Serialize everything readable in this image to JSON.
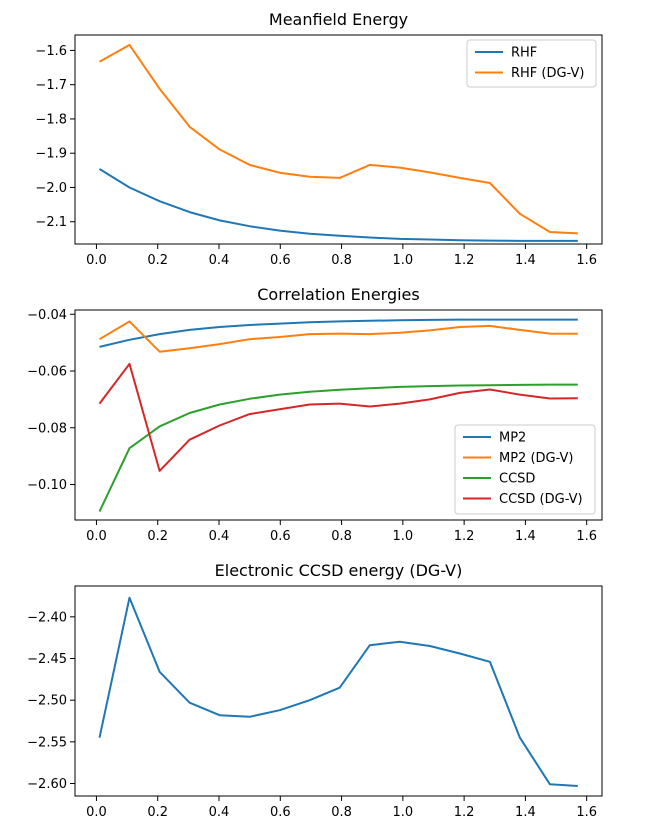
{
  "chart_data": [
    {
      "type": "line",
      "title": "Meanfield Energy",
      "xlim": [
        -0.07,
        1.65
      ],
      "ylim": [
        -2.165,
        -1.555
      ],
      "xticks": [
        "0.0",
        "0.2",
        "0.4",
        "0.6",
        "0.8",
        "1.0",
        "1.2",
        "1.4",
        "1.6"
      ],
      "yticks": [
        "-1.6",
        "-1.7",
        "-1.8",
        "-1.9",
        "-2.0",
        "-2.1"
      ],
      "legend": "top-right",
      "x": [
        0.01,
        0.108,
        0.206,
        0.304,
        0.402,
        0.5,
        0.598,
        0.696,
        0.794,
        0.892,
        0.99,
        1.088,
        1.186,
        1.284,
        1.382,
        1.48,
        1.571
      ],
      "series": [
        {
          "name": "RHF",
          "color": "#1f77b4",
          "values": [
            -1.946,
            -2.0,
            -2.04,
            -2.072,
            -2.096,
            -2.113,
            -2.126,
            -2.135,
            -2.141,
            -2.146,
            -2.15,
            -2.152,
            -2.154,
            -2.155,
            -2.156,
            -2.156,
            -2.156
          ]
        },
        {
          "name": "RHF (DG-V)",
          "color": "#ff7f0e",
          "values": [
            -1.633,
            -1.584,
            -1.712,
            -1.823,
            -1.889,
            -1.934,
            -1.957,
            -1.969,
            -1.972,
            -1.934,
            -1.942,
            -1.956,
            -1.972,
            -1.987,
            -2.077,
            -2.13,
            -2.134
          ]
        }
      ]
    },
    {
      "type": "line",
      "title": "Correlation Energies",
      "xlim": [
        -0.07,
        1.65
      ],
      "ylim": [
        -0.1125,
        -0.0385
      ],
      "xticks": [
        "0.0",
        "0.2",
        "0.4",
        "0.6",
        "0.8",
        "1.0",
        "1.2",
        "1.4",
        "1.6"
      ],
      "yticks": [
        "-0.04",
        "-0.06",
        "-0.08",
        "-0.10"
      ],
      "legend": "bottom-right",
      "x": [
        0.01,
        0.108,
        0.206,
        0.304,
        0.402,
        0.5,
        0.598,
        0.696,
        0.794,
        0.892,
        0.99,
        1.088,
        1.186,
        1.284,
        1.382,
        1.48,
        1.571
      ],
      "series": [
        {
          "name": "MP2",
          "color": "#1f77b4",
          "values": [
            -0.0515,
            -0.049,
            -0.047,
            -0.0455,
            -0.0445,
            -0.0438,
            -0.0433,
            -0.0428,
            -0.0425,
            -0.0423,
            -0.0421,
            -0.042,
            -0.0419,
            -0.0419,
            -0.0419,
            -0.0419,
            -0.0419
          ]
        },
        {
          "name": "MP2 (DG-V)",
          "color": "#ff7f0e",
          "values": [
            -0.0488,
            -0.0425,
            -0.0532,
            -0.052,
            -0.0505,
            -0.0488,
            -0.048,
            -0.047,
            -0.0468,
            -0.047,
            -0.0465,
            -0.0457,
            -0.0445,
            -0.0441,
            -0.0455,
            -0.0468,
            -0.0469
          ]
        },
        {
          "name": "CCSD",
          "color": "#2ca02c",
          "values": [
            -0.1095,
            -0.0872,
            -0.0795,
            -0.0748,
            -0.0718,
            -0.0698,
            -0.0683,
            -0.0673,
            -0.0666,
            -0.0661,
            -0.0656,
            -0.0653,
            -0.0651,
            -0.065,
            -0.0649,
            -0.0648,
            -0.0648
          ]
        },
        {
          "name": "CCSD (DG-V)",
          "color": "#d62728",
          "values": [
            -0.0715,
            -0.0575,
            -0.0952,
            -0.0842,
            -0.0792,
            -0.0752,
            -0.0735,
            -0.0718,
            -0.0715,
            -0.0725,
            -0.0715,
            -0.07,
            -0.0677,
            -0.0665,
            -0.0683,
            -0.0697,
            -0.0696
          ]
        }
      ]
    },
    {
      "type": "line",
      "title": "Electronic CCSD energy (DG-V)",
      "xlim": [
        -0.07,
        1.65
      ],
      "ylim": [
        -2.615,
        -2.363
      ],
      "xticks": [
        "0.0",
        "0.2",
        "0.4",
        "0.6",
        "0.8",
        "1.0",
        "1.2",
        "1.4",
        "1.6"
      ],
      "yticks": [
        "-2.40",
        "-2.45",
        "-2.50",
        "-2.55",
        "-2.60"
      ],
      "legend": "none",
      "x": [
        0.01,
        0.108,
        0.206,
        0.304,
        0.402,
        0.5,
        0.598,
        0.696,
        0.794,
        0.892,
        0.99,
        1.088,
        1.186,
        1.284,
        1.382,
        1.48,
        1.571
      ],
      "series": [
        {
          "color": "#1f77b4",
          "values": [
            -2.545,
            -2.377,
            -2.466,
            -2.503,
            -2.518,
            -2.52,
            -2.512,
            -2.5,
            -2.485,
            -2.434,
            -2.43,
            -2.435,
            -2.444,
            -2.454,
            -2.545,
            -2.601,
            -2.603
          ]
        }
      ]
    }
  ]
}
